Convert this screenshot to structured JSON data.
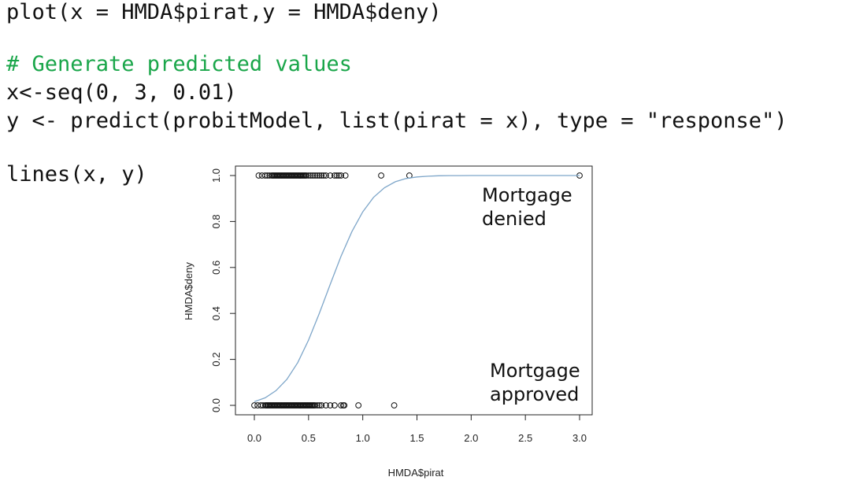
{
  "code": {
    "lines": [
      {
        "text": "plot(x = HMDA$pirat,y = HMDA$deny)",
        "kind": "code"
      },
      {
        "text": "# Generate predicted values",
        "kind": "comment"
      },
      {
        "text": "x<-seq(0, 3, 0.01)",
        "kind": "code"
      },
      {
        "text": "y <- predict(probitModel, list(pirat = x), type = \"response\")",
        "kind": "code"
      },
      {
        "text": "lines(x, y)",
        "kind": "code"
      }
    ],
    "comment_color": "#1aa64a"
  },
  "chart_data": {
    "type": "scatter",
    "title": "",
    "xlabel": "HMDA$pirat",
    "ylabel": "HMDA$deny",
    "xlim": [
      0,
      3
    ],
    "ylim": [
      0,
      1
    ],
    "xticks": [
      "0.0",
      "0.5",
      "1.0",
      "1.5",
      "2.0",
      "2.5",
      "3.0"
    ],
    "yticks": [
      "0.0",
      "0.2",
      "0.4",
      "0.6",
      "0.8",
      "1.0"
    ],
    "grid": false,
    "series": [
      {
        "kind": "points",
        "y": 1,
        "x": [
          0.04,
          0.07,
          0.1,
          0.12,
          0.14,
          0.16,
          0.17,
          0.18,
          0.19,
          0.2,
          0.21,
          0.22,
          0.23,
          0.24,
          0.25,
          0.26,
          0.27,
          0.28,
          0.29,
          0.3,
          0.31,
          0.32,
          0.33,
          0.34,
          0.35,
          0.36,
          0.37,
          0.38,
          0.39,
          0.4,
          0.41,
          0.42,
          0.43,
          0.44,
          0.45,
          0.46,
          0.47,
          0.48,
          0.5,
          0.52,
          0.54,
          0.56,
          0.58,
          0.6,
          0.62,
          0.64,
          0.66,
          0.7,
          0.74,
          0.76,
          0.78,
          0.8,
          0.84,
          1.17,
          1.43,
          3.0
        ]
      },
      {
        "kind": "points",
        "y": 0,
        "x": [
          0.0,
          0.03,
          0.06,
          0.08,
          0.1,
          0.11,
          0.12,
          0.13,
          0.14,
          0.15,
          0.16,
          0.17,
          0.18,
          0.19,
          0.2,
          0.21,
          0.22,
          0.23,
          0.24,
          0.25,
          0.26,
          0.27,
          0.28,
          0.29,
          0.3,
          0.31,
          0.32,
          0.33,
          0.34,
          0.35,
          0.36,
          0.37,
          0.38,
          0.39,
          0.4,
          0.41,
          0.42,
          0.43,
          0.44,
          0.45,
          0.46,
          0.47,
          0.48,
          0.49,
          0.5,
          0.51,
          0.52,
          0.53,
          0.54,
          0.55,
          0.56,
          0.58,
          0.6,
          0.62,
          0.66,
          0.7,
          0.74,
          0.8,
          0.82,
          0.83,
          0.96,
          1.29
        ]
      },
      {
        "kind": "line",
        "color": "#7ea6c9",
        "x": [
          0.0,
          0.1,
          0.2,
          0.3,
          0.4,
          0.5,
          0.6,
          0.7,
          0.8,
          0.9,
          1.0,
          1.1,
          1.2,
          1.3,
          1.4,
          1.5,
          1.6,
          1.7,
          1.8,
          1.9,
          2.0,
          2.2,
          2.4,
          2.6,
          2.8,
          3.0
        ],
        "y": [
          0.016,
          0.033,
          0.064,
          0.113,
          0.186,
          0.284,
          0.401,
          0.527,
          0.649,
          0.756,
          0.842,
          0.905,
          0.947,
          0.973,
          0.987,
          0.994,
          0.997,
          0.999,
          0.9996,
          0.9998,
          0.9999,
          1.0,
          1.0,
          1.0,
          1.0,
          1.0
        ]
      }
    ],
    "annotations": [
      {
        "lines": [
          "Mortgage",
          "denied"
        ],
        "x": 2.05,
        "y": 0.88
      },
      {
        "lines": [
          "Mortgage",
          "approved"
        ],
        "x": 2.12,
        "y": 0.1
      }
    ]
  }
}
